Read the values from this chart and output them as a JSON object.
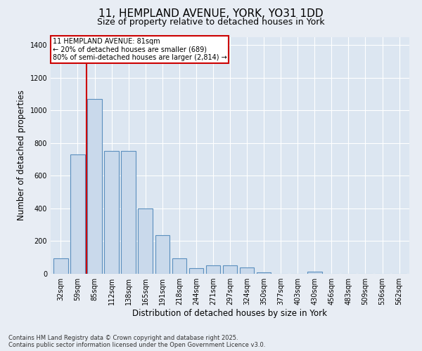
{
  "title_line1": "11, HEMPLAND AVENUE, YORK, YO31 1DD",
  "title_line2": "Size of property relative to detached houses in York",
  "xlabel": "Distribution of detached houses by size in York",
  "ylabel": "Number of detached properties",
  "categories": [
    "32sqm",
    "59sqm",
    "85sqm",
    "112sqm",
    "138sqm",
    "165sqm",
    "191sqm",
    "218sqm",
    "244sqm",
    "271sqm",
    "297sqm",
    "324sqm",
    "350sqm",
    "377sqm",
    "403sqm",
    "430sqm",
    "456sqm",
    "483sqm",
    "509sqm",
    "536sqm",
    "562sqm"
  ],
  "values": [
    95,
    730,
    1070,
    750,
    750,
    400,
    235,
    95,
    35,
    50,
    50,
    40,
    10,
    0,
    0,
    15,
    0,
    0,
    0,
    0,
    0
  ],
  "bar_color": "#c9d9eb",
  "bar_edge_color": "#5b8fbe",
  "vline_color": "#cc0000",
  "annotation_title": "11 HEMPLAND AVENUE: 81sqm",
  "annotation_line2": "← 20% of detached houses are smaller (689)",
  "annotation_line3": "80% of semi-detached houses are larger (2,814) →",
  "annotation_box_edgecolor": "#cc0000",
  "ylim": [
    0,
    1450
  ],
  "yticks": [
    0,
    200,
    400,
    600,
    800,
    1000,
    1200,
    1400
  ],
  "background_color": "#e8edf4",
  "plot_bg_color": "#dce6f1",
  "footer_line1": "Contains HM Land Registry data © Crown copyright and database right 2025.",
  "footer_line2": "Contains public sector information licensed under the Open Government Licence v3.0.",
  "grid_color": "#ffffff",
  "title_fontsize": 11,
  "subtitle_fontsize": 9,
  "tick_fontsize": 7,
  "label_fontsize": 8.5,
  "footer_fontsize": 6
}
